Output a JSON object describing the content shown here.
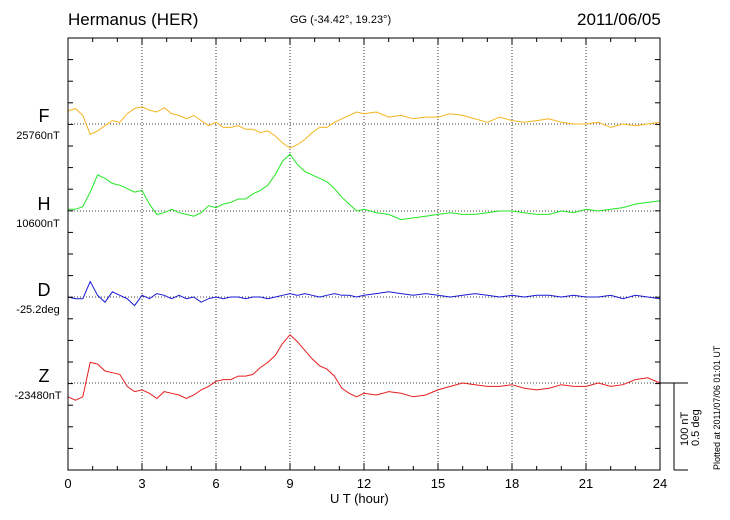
{
  "header": {
    "station": "Hermanus (HER)",
    "coords": "GG (-34.42°,  19.23°)",
    "date": "2011/06/05"
  },
  "plotted_note": "Plotted at 2011/07/06 01:01  UT",
  "scale_note": {
    "line1": "100 nT",
    "line2": "0.5 deg"
  },
  "channels": [
    {
      "name": "F",
      "baseline": "25760nT",
      "color": "#f5b41e"
    },
    {
      "name": "H",
      "baseline": "10600nT",
      "color": "#22e622"
    },
    {
      "name": "D",
      "baseline": "-25.2deg",
      "color": "#1a1ad6"
    },
    {
      "name": "Z",
      "baseline": "-23480nT",
      "color": "#e61e1e"
    }
  ],
  "chart_data": {
    "type": "line",
    "xlabel": "U T (hour)",
    "xlim": [
      0,
      24
    ],
    "xticks": [
      "0",
      "3",
      "6",
      "9",
      "12",
      "15",
      "18",
      "21",
      "24"
    ],
    "grid": true,
    "series": [
      {
        "name": "F",
        "unit": "nT",
        "baseline": 25760,
        "x": [
          0,
          0.3,
          0.6,
          0.9,
          1.2,
          1.5,
          1.8,
          2.1,
          2.4,
          2.7,
          3.0,
          3.3,
          3.6,
          3.9,
          4.2,
          4.5,
          4.8,
          5.1,
          5.4,
          5.7,
          6.0,
          6.3,
          6.6,
          6.9,
          7.2,
          7.5,
          7.8,
          8.1,
          8.4,
          8.7,
          9.0,
          9.3,
          9.6,
          9.9,
          10.2,
          10.5,
          10.8,
          11.1,
          11.4,
          11.7,
          12.0,
          12.5,
          13.0,
          13.5,
          14.0,
          14.5,
          15.0,
          15.5,
          16.0,
          16.5,
          17.0,
          17.5,
          18.0,
          18.5,
          19.0,
          19.5,
          20.0,
          20.5,
          21.0,
          21.5,
          22.0,
          22.5,
          23.0,
          23.5,
          24.0
        ],
        "values": [
          15,
          18,
          10,
          -12,
          -8,
          -2,
          4,
          2,
          12,
          18,
          20,
          16,
          14,
          19,
          12,
          10,
          6,
          10,
          4,
          -2,
          2,
          -4,
          -4,
          -2,
          -6,
          -6,
          -10,
          -8,
          -14,
          -22,
          -28,
          -24,
          -18,
          -10,
          -4,
          -4,
          2,
          6,
          10,
          14,
          12,
          14,
          8,
          10,
          6,
          8,
          8,
          12,
          10,
          6,
          2,
          8,
          4,
          2,
          4,
          6,
          2,
          0,
          0,
          2,
          -4,
          0,
          -2,
          0,
          2
        ]
      },
      {
        "name": "H",
        "unit": "nT",
        "baseline": 10600,
        "x": [
          0,
          0.3,
          0.6,
          0.9,
          1.2,
          1.5,
          1.8,
          2.1,
          2.4,
          2.7,
          3.0,
          3.3,
          3.6,
          3.9,
          4.2,
          4.5,
          4.8,
          5.1,
          5.4,
          5.7,
          6.0,
          6.3,
          6.6,
          6.9,
          7.2,
          7.5,
          7.8,
          8.1,
          8.4,
          8.7,
          9.0,
          9.3,
          9.6,
          9.9,
          10.2,
          10.5,
          10.8,
          11.1,
          11.4,
          11.7,
          12.0,
          12.5,
          13.0,
          13.5,
          14.0,
          14.5,
          15.0,
          15.5,
          16.0,
          16.5,
          17.0,
          17.5,
          18.0,
          18.5,
          19.0,
          19.5,
          20.0,
          20.5,
          21.0,
          21.5,
          22.0,
          22.5,
          23.0,
          23.5,
          24.0
        ],
        "values": [
          2,
          2,
          5,
          22,
          42,
          38,
          32,
          30,
          26,
          22,
          24,
          8,
          -4,
          -2,
          2,
          -2,
          -4,
          -6,
          -2,
          6,
          4,
          8,
          10,
          14,
          14,
          20,
          24,
          30,
          42,
          58,
          66,
          54,
          46,
          42,
          38,
          34,
          26,
          16,
          8,
          0,
          2,
          -2,
          -4,
          -10,
          -8,
          -6,
          -4,
          -2,
          -4,
          -4,
          -2,
          0,
          0,
          -2,
          -4,
          -4,
          0,
          -2,
          2,
          0,
          2,
          4,
          8,
          10,
          12
        ]
      },
      {
        "name": "D",
        "unit": "deg",
        "baseline": -25.2,
        "x": [
          0,
          0.3,
          0.6,
          0.9,
          1.2,
          1.5,
          1.8,
          2.1,
          2.4,
          2.7,
          3.0,
          3.3,
          3.6,
          3.9,
          4.2,
          4.5,
          4.8,
          5.1,
          5.4,
          5.7,
          6.0,
          6.3,
          6.6,
          6.9,
          7.2,
          7.5,
          7.8,
          8.1,
          8.4,
          8.7,
          9.0,
          9.3,
          9.6,
          9.9,
          10.2,
          10.5,
          10.8,
          11.1,
          11.4,
          11.7,
          12.0,
          12.5,
          13.0,
          13.5,
          14.0,
          14.5,
          15.0,
          15.5,
          16.0,
          16.5,
          17.0,
          17.5,
          18.0,
          18.5,
          19.0,
          19.5,
          20.0,
          20.5,
          21.0,
          21.5,
          22.0,
          22.5,
          23.0,
          23.5,
          24.0
        ],
        "values": [
          0,
          -2,
          -2,
          18,
          2,
          -6,
          6,
          2,
          -2,
          -10,
          2,
          -2,
          4,
          2,
          -2,
          2,
          -2,
          0,
          -6,
          -2,
          0,
          -2,
          0,
          0,
          -2,
          0,
          0,
          -2,
          0,
          2,
          4,
          2,
          4,
          2,
          0,
          2,
          4,
          2,
          2,
          0,
          2,
          4,
          6,
          4,
          2,
          4,
          2,
          0,
          2,
          4,
          2,
          0,
          2,
          0,
          2,
          2,
          0,
          2,
          0,
          0,
          2,
          -2,
          2,
          0,
          -2
        ]
      },
      {
        "name": "Z",
        "unit": "nT",
        "baseline": -23480,
        "x": [
          0,
          0.3,
          0.6,
          0.9,
          1.2,
          1.5,
          1.8,
          2.1,
          2.4,
          2.7,
          3.0,
          3.3,
          3.6,
          3.9,
          4.2,
          4.5,
          4.8,
          5.1,
          5.4,
          5.7,
          6.0,
          6.3,
          6.6,
          6.9,
          7.2,
          7.5,
          7.8,
          8.1,
          8.4,
          8.7,
          9.0,
          9.3,
          9.6,
          9.9,
          10.2,
          10.5,
          10.8,
          11.1,
          11.4,
          11.7,
          12.0,
          12.5,
          13.0,
          13.5,
          14.0,
          14.5,
          15.0,
          15.5,
          16.0,
          16.5,
          17.0,
          17.5,
          18.0,
          18.5,
          19.0,
          19.5,
          20.0,
          20.5,
          21.0,
          21.5,
          22.0,
          22.5,
          23.0,
          23.5,
          24.0
        ],
        "values": [
          -16,
          -20,
          -16,
          24,
          22,
          14,
          12,
          10,
          -4,
          -10,
          -8,
          -12,
          -18,
          -10,
          -12,
          -14,
          -18,
          -14,
          -8,
          -4,
          2,
          4,
          4,
          8,
          8,
          10,
          18,
          24,
          32,
          46,
          56,
          48,
          38,
          28,
          20,
          16,
          8,
          -6,
          -12,
          -16,
          -12,
          -14,
          -10,
          -12,
          -16,
          -14,
          -8,
          -4,
          0,
          -2,
          -4,
          -4,
          -2,
          -6,
          -8,
          -6,
          -2,
          -4,
          -4,
          0,
          -4,
          -2,
          4,
          6,
          0
        ]
      }
    ]
  }
}
